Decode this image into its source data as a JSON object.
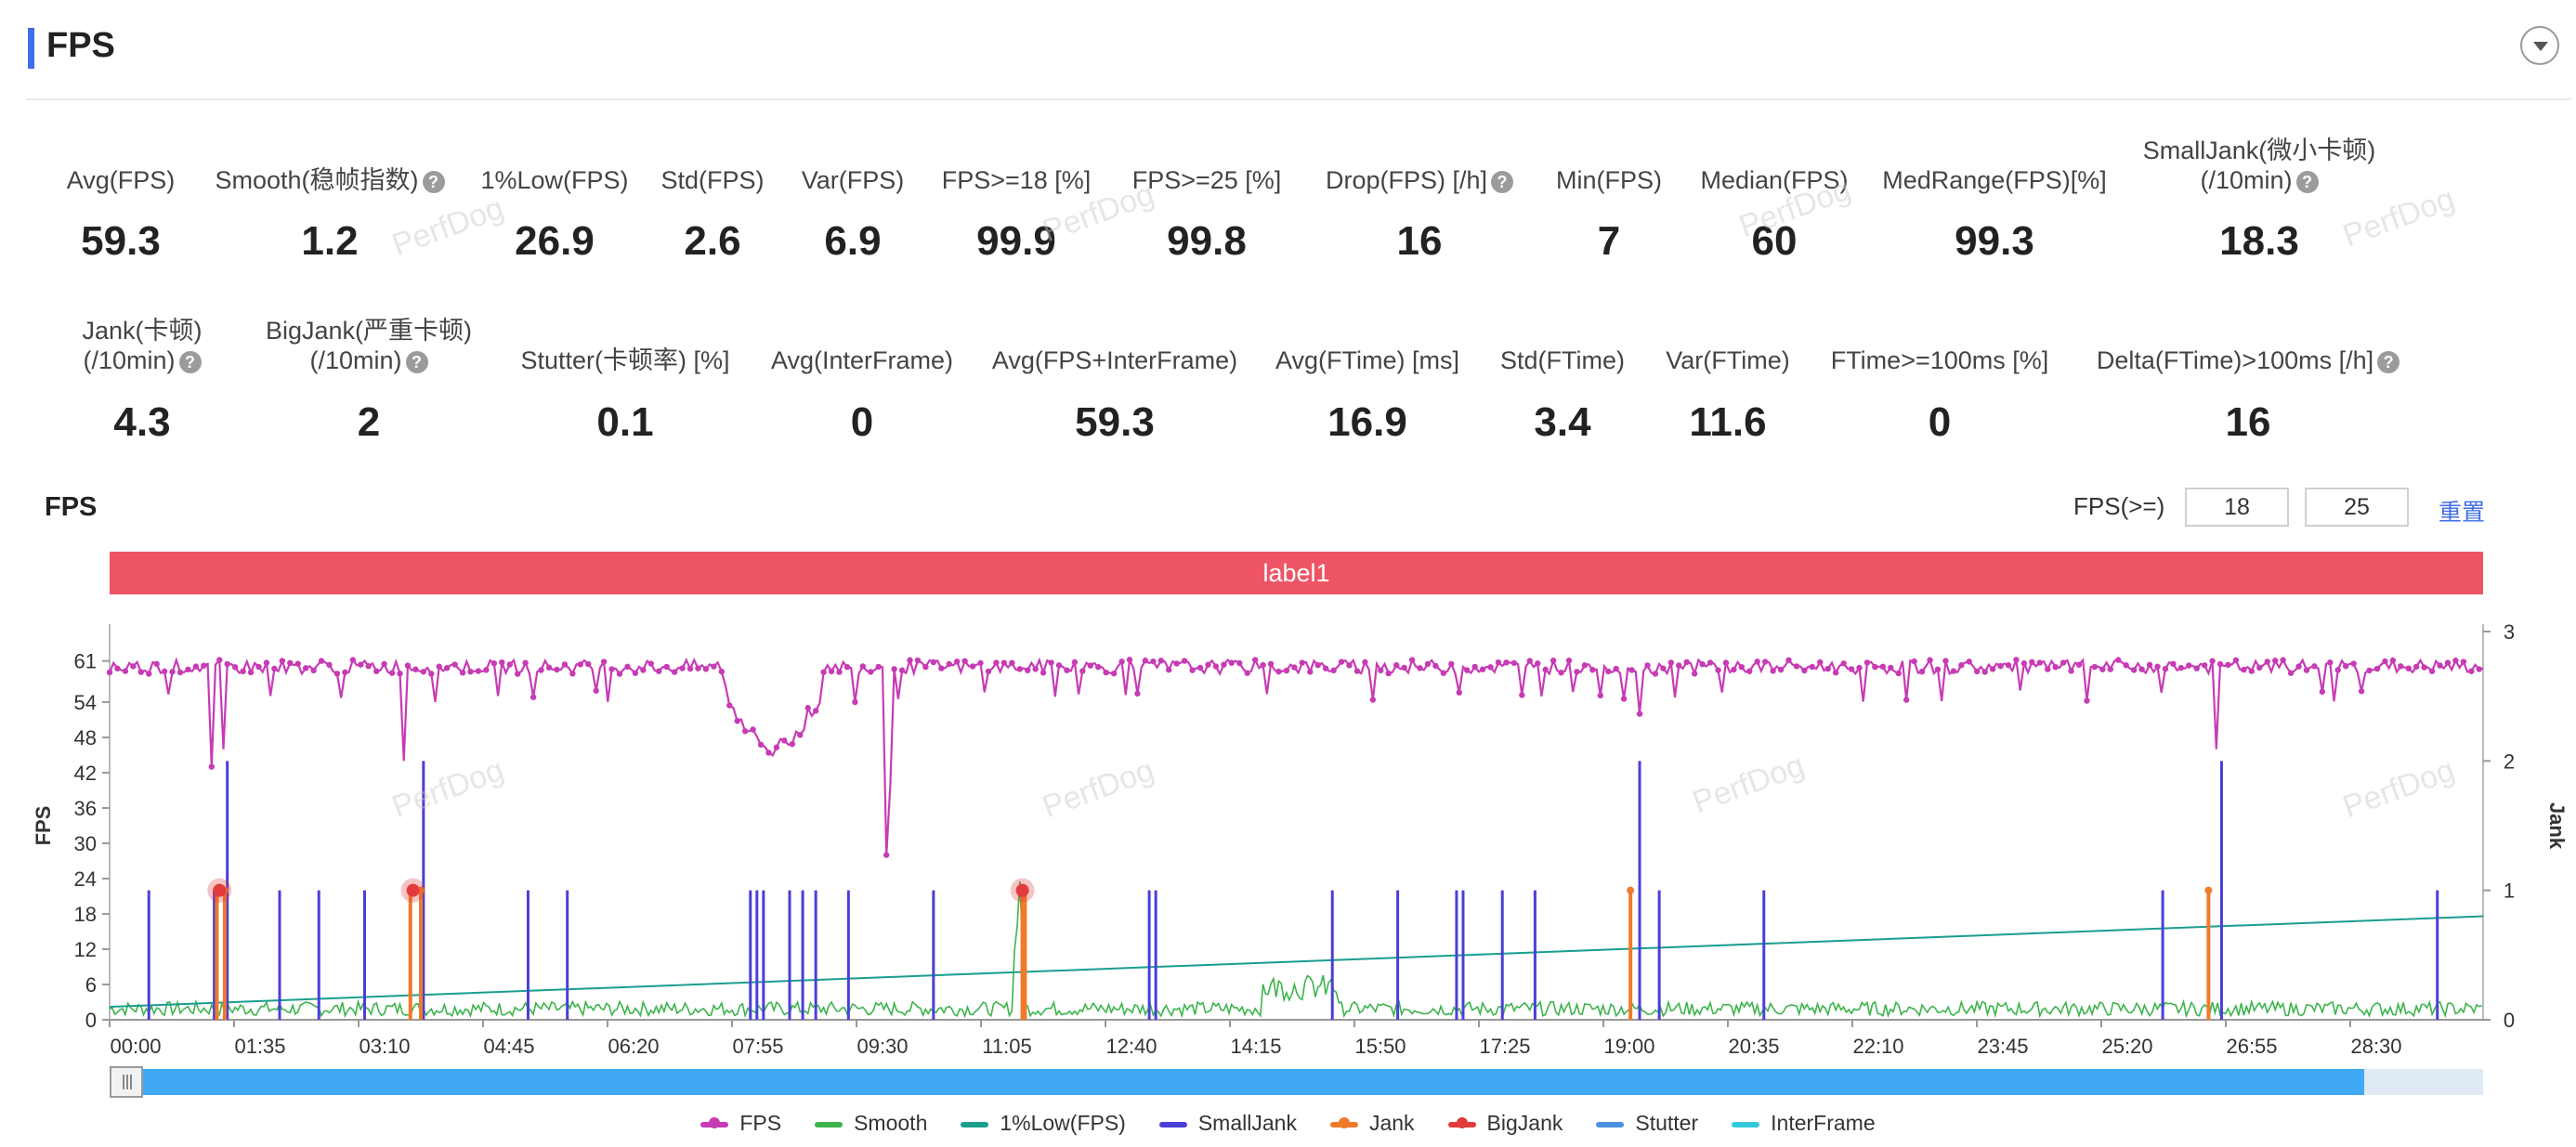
{
  "header": {
    "title": "FPS"
  },
  "stats_row1": [
    {
      "key": "avg_fps",
      "label": "Avg(FPS)",
      "value": "59.3",
      "help": false,
      "cx": 130
    },
    {
      "key": "smooth",
      "label": "Smooth(稳帧指数)",
      "value": "1.2",
      "help": true,
      "cx": 355
    },
    {
      "key": "low1",
      "label": "1%Low(FPS)",
      "value": "26.9",
      "help": false,
      "cx": 597
    },
    {
      "key": "std_fps",
      "label": "Std(FPS)",
      "value": "2.6",
      "help": false,
      "cx": 767
    },
    {
      "key": "var_fps",
      "label": "Var(FPS)",
      "value": "6.9",
      "help": false,
      "cx": 918
    },
    {
      "key": "fps18",
      "label": "FPS>=18 [%]",
      "value": "99.9",
      "help": false,
      "cx": 1094
    },
    {
      "key": "fps25",
      "label": "FPS>=25 [%]",
      "value": "99.8",
      "help": false,
      "cx": 1299
    },
    {
      "key": "drop",
      "label": "Drop(FPS) [/h]",
      "value": "16",
      "help": true,
      "cx": 1528
    },
    {
      "key": "min_fps",
      "label": "Min(FPS)",
      "value": "7",
      "help": false,
      "cx": 1732
    },
    {
      "key": "median",
      "label": "Median(FPS)",
      "value": "60",
      "help": false,
      "cx": 1910
    },
    {
      "key": "medrange",
      "label": "MedRange(FPS)[%]",
      "value": "99.3",
      "help": false,
      "cx": 2147
    }
  ],
  "small_jank": {
    "label1": "SmallJank(微小卡顿)",
    "label2": "(/10min)",
    "value": "18.3"
  },
  "jank": {
    "label1": "Jank(卡顿)",
    "label2": "(/10min)",
    "value": "4.3"
  },
  "big_jank": {
    "label1": "BigJank(严重卡顿)",
    "label2": "(/10min)",
    "value": "2"
  },
  "stats_row2": [
    {
      "key": "stutter",
      "label": "Stutter(卡顿率) [%]",
      "value": "0.1",
      "help": false,
      "cx": 673
    },
    {
      "key": "avg_interframe",
      "label": "Avg(InterFrame)",
      "value": "0",
      "help": false,
      "cx": 928
    },
    {
      "key": "avg_fps_interframe",
      "label": "Avg(FPS+InterFrame)",
      "value": "59.3",
      "help": false,
      "cx": 1200
    },
    {
      "key": "avg_ftime",
      "label": "Avg(FTime) [ms]",
      "value": "16.9",
      "help": false,
      "cx": 1472
    },
    {
      "key": "std_ftime",
      "label": "Std(FTime)",
      "value": "3.4",
      "help": false,
      "cx": 1682
    },
    {
      "key": "var_ftime",
      "label": "Var(FTime)",
      "value": "11.6",
      "help": false,
      "cx": 1860
    },
    {
      "key": "ftime100",
      "label": "FTime>=100ms [%]",
      "value": "0",
      "help": false,
      "cx": 2088
    },
    {
      "key": "delta_ftime",
      "label": "Delta(FTime)>100ms [/h]",
      "value": "16",
      "help": true,
      "cx": 2420
    }
  ],
  "chart_section": {
    "title": "FPS",
    "threshold_label": "FPS(>=)",
    "threshold_low": "18",
    "threshold_high": "25",
    "reset_label": "重置",
    "label_bar": "label1"
  },
  "scrollbar": {
    "visible_fraction": 0.95
  },
  "watermark": "PerfDog",
  "colors": {
    "fps": "#c73bb5",
    "smooth": "#3cb44b",
    "low1": "#1a9e8f",
    "small_jank": "#4b3fd8",
    "jank": "#f07a2a",
    "big_jank": "#e23b3b",
    "stutter": "#4a90e2",
    "interframe": "#34c9d9",
    "label_bar": "#ed5565"
  },
  "legend": [
    {
      "name": "FPS",
      "color": "#c73bb5",
      "marker": true
    },
    {
      "name": "Smooth",
      "color": "#3cb44b",
      "marker": false
    },
    {
      "name": "1%Low(FPS)",
      "color": "#1a9e8f",
      "marker": false
    },
    {
      "name": "SmallJank",
      "color": "#4b3fd8",
      "marker": false
    },
    {
      "name": "Jank",
      "color": "#f07a2a",
      "marker": true
    },
    {
      "name": "BigJank",
      "color": "#e23b3b",
      "marker": true
    },
    {
      "name": "Stutter",
      "color": "#4a90e2",
      "marker": false
    },
    {
      "name": "InterFrame",
      "color": "#34c9d9",
      "marker": false
    }
  ],
  "chart_data": {
    "type": "line",
    "ylabel": "FPS",
    "y2label": "Jank",
    "y_ticks": [
      0,
      6,
      12,
      18,
      24,
      30,
      36,
      42,
      48,
      54,
      61
    ],
    "ylim": [
      0,
      66
    ],
    "y2_ticks": [
      0,
      1,
      2,
      3
    ],
    "y2lim": [
      0,
      3
    ],
    "x_ticks": [
      "00:00",
      "01:35",
      "03:10",
      "04:45",
      "06:20",
      "07:55",
      "09:30",
      "11:05",
      "12:40",
      "14:15",
      "15:50",
      "17:25",
      "19:00",
      "20:35",
      "22:10",
      "23:45",
      "25:20",
      "26:55",
      "28:30"
    ],
    "xlim_seconds": [
      0,
      1815
    ],
    "fps_baseline": 60,
    "fps_dips": [
      [
        78,
        43
      ],
      [
        86,
        46
      ],
      [
        225,
        44
      ],
      [
        595,
        28
      ],
      [
        597,
        40
      ],
      [
        1170,
        52
      ],
      [
        1610,
        46
      ],
      [
        510,
        45
      ],
      [
        520,
        46
      ],
      [
        530,
        50
      ],
      [
        480,
        52
      ],
      [
        490,
        50
      ],
      [
        500,
        48
      ]
    ],
    "small_jank_spikes": [
      [
        30,
        1
      ],
      [
        80,
        1
      ],
      [
        90,
        2
      ],
      [
        130,
        1
      ],
      [
        160,
        1
      ],
      [
        195,
        1
      ],
      [
        240,
        2
      ],
      [
        320,
        1
      ],
      [
        350,
        1
      ],
      [
        490,
        1
      ],
      [
        495,
        1
      ],
      [
        500,
        1
      ],
      [
        520,
        1
      ],
      [
        530,
        1
      ],
      [
        540,
        1
      ],
      [
        565,
        1
      ],
      [
        630,
        1
      ],
      [
        795,
        1
      ],
      [
        800,
        1
      ],
      [
        935,
        1
      ],
      [
        985,
        1
      ],
      [
        1030,
        1
      ],
      [
        1035,
        1
      ],
      [
        1065,
        1
      ],
      [
        1090,
        1
      ],
      [
        1170,
        2
      ],
      [
        1185,
        1
      ],
      [
        1265,
        1
      ],
      [
        1570,
        1
      ],
      [
        1615,
        2
      ],
      [
        1780,
        1
      ]
    ],
    "jank_spikes": [
      [
        82,
        1
      ],
      [
        88,
        1
      ],
      [
        230,
        1
      ],
      [
        238,
        1
      ],
      [
        698,
        1
      ],
      [
        700,
        1
      ],
      [
        1163,
        1
      ],
      [
        1605,
        1
      ]
    ],
    "big_jank_points": [
      [
        84,
        1
      ],
      [
        232,
        1
      ],
      [
        698,
        1
      ]
    ],
    "low1_line": [
      [
        0,
        0.1
      ],
      [
        1815,
        0.8
      ]
    ],
    "smooth_level": 0.1
  }
}
